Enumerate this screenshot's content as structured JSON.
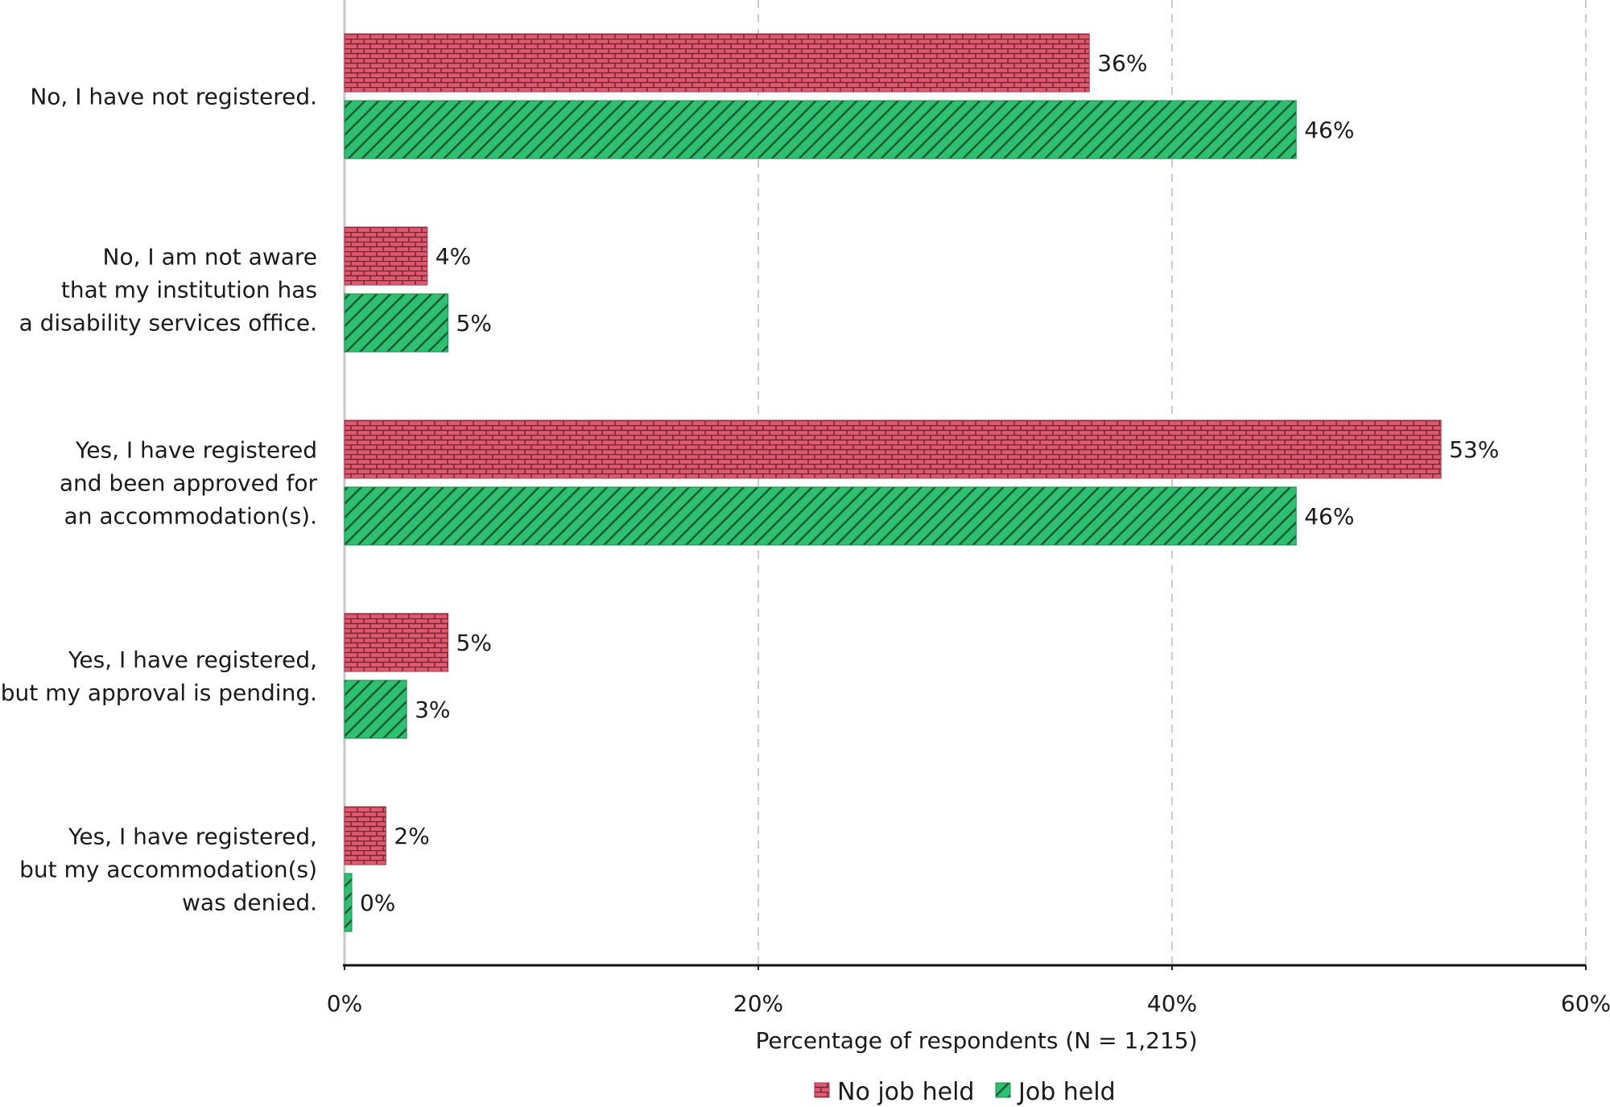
{
  "chart_data": {
    "type": "bar",
    "orientation": "horizontal",
    "categories": [
      [
        "No, I have not registered."
      ],
      [
        "No, I am not aware",
        "that my institution has",
        "a disability services office."
      ],
      [
        "Yes, I have registered",
        "and been approved for",
        "an accommodation(s)."
      ],
      [
        "Yes, I have registered,",
        "but my approval is pending."
      ],
      [
        "Yes, I have registered,",
        "but my accommodation(s)",
        "was denied."
      ]
    ],
    "series": [
      {
        "name": "No job held",
        "values": [
          36,
          4,
          53,
          5,
          2
        ],
        "labels": [
          "36%",
          "4%",
          "53%",
          "5%",
          "2%"
        ],
        "color": "#e05a6f",
        "pattern": "brick"
      },
      {
        "name": "Job held",
        "values": [
          46,
          5,
          46,
          3,
          0.35
        ],
        "labels": [
          "46%",
          "5%",
          "46%",
          "3%",
          "0%"
        ],
        "color": "#2fbf71",
        "pattern": "diagonal-hatch"
      }
    ],
    "xlim": [
      0,
      60
    ],
    "xticks": [
      0,
      20,
      40,
      60
    ],
    "xtick_labels": [
      "0%",
      "20%",
      "40%",
      "60%"
    ],
    "xlabel": "Percentage of respondents (N = 1,215)",
    "grid": "vertical-dashed",
    "legend_position": "bottom-center"
  }
}
